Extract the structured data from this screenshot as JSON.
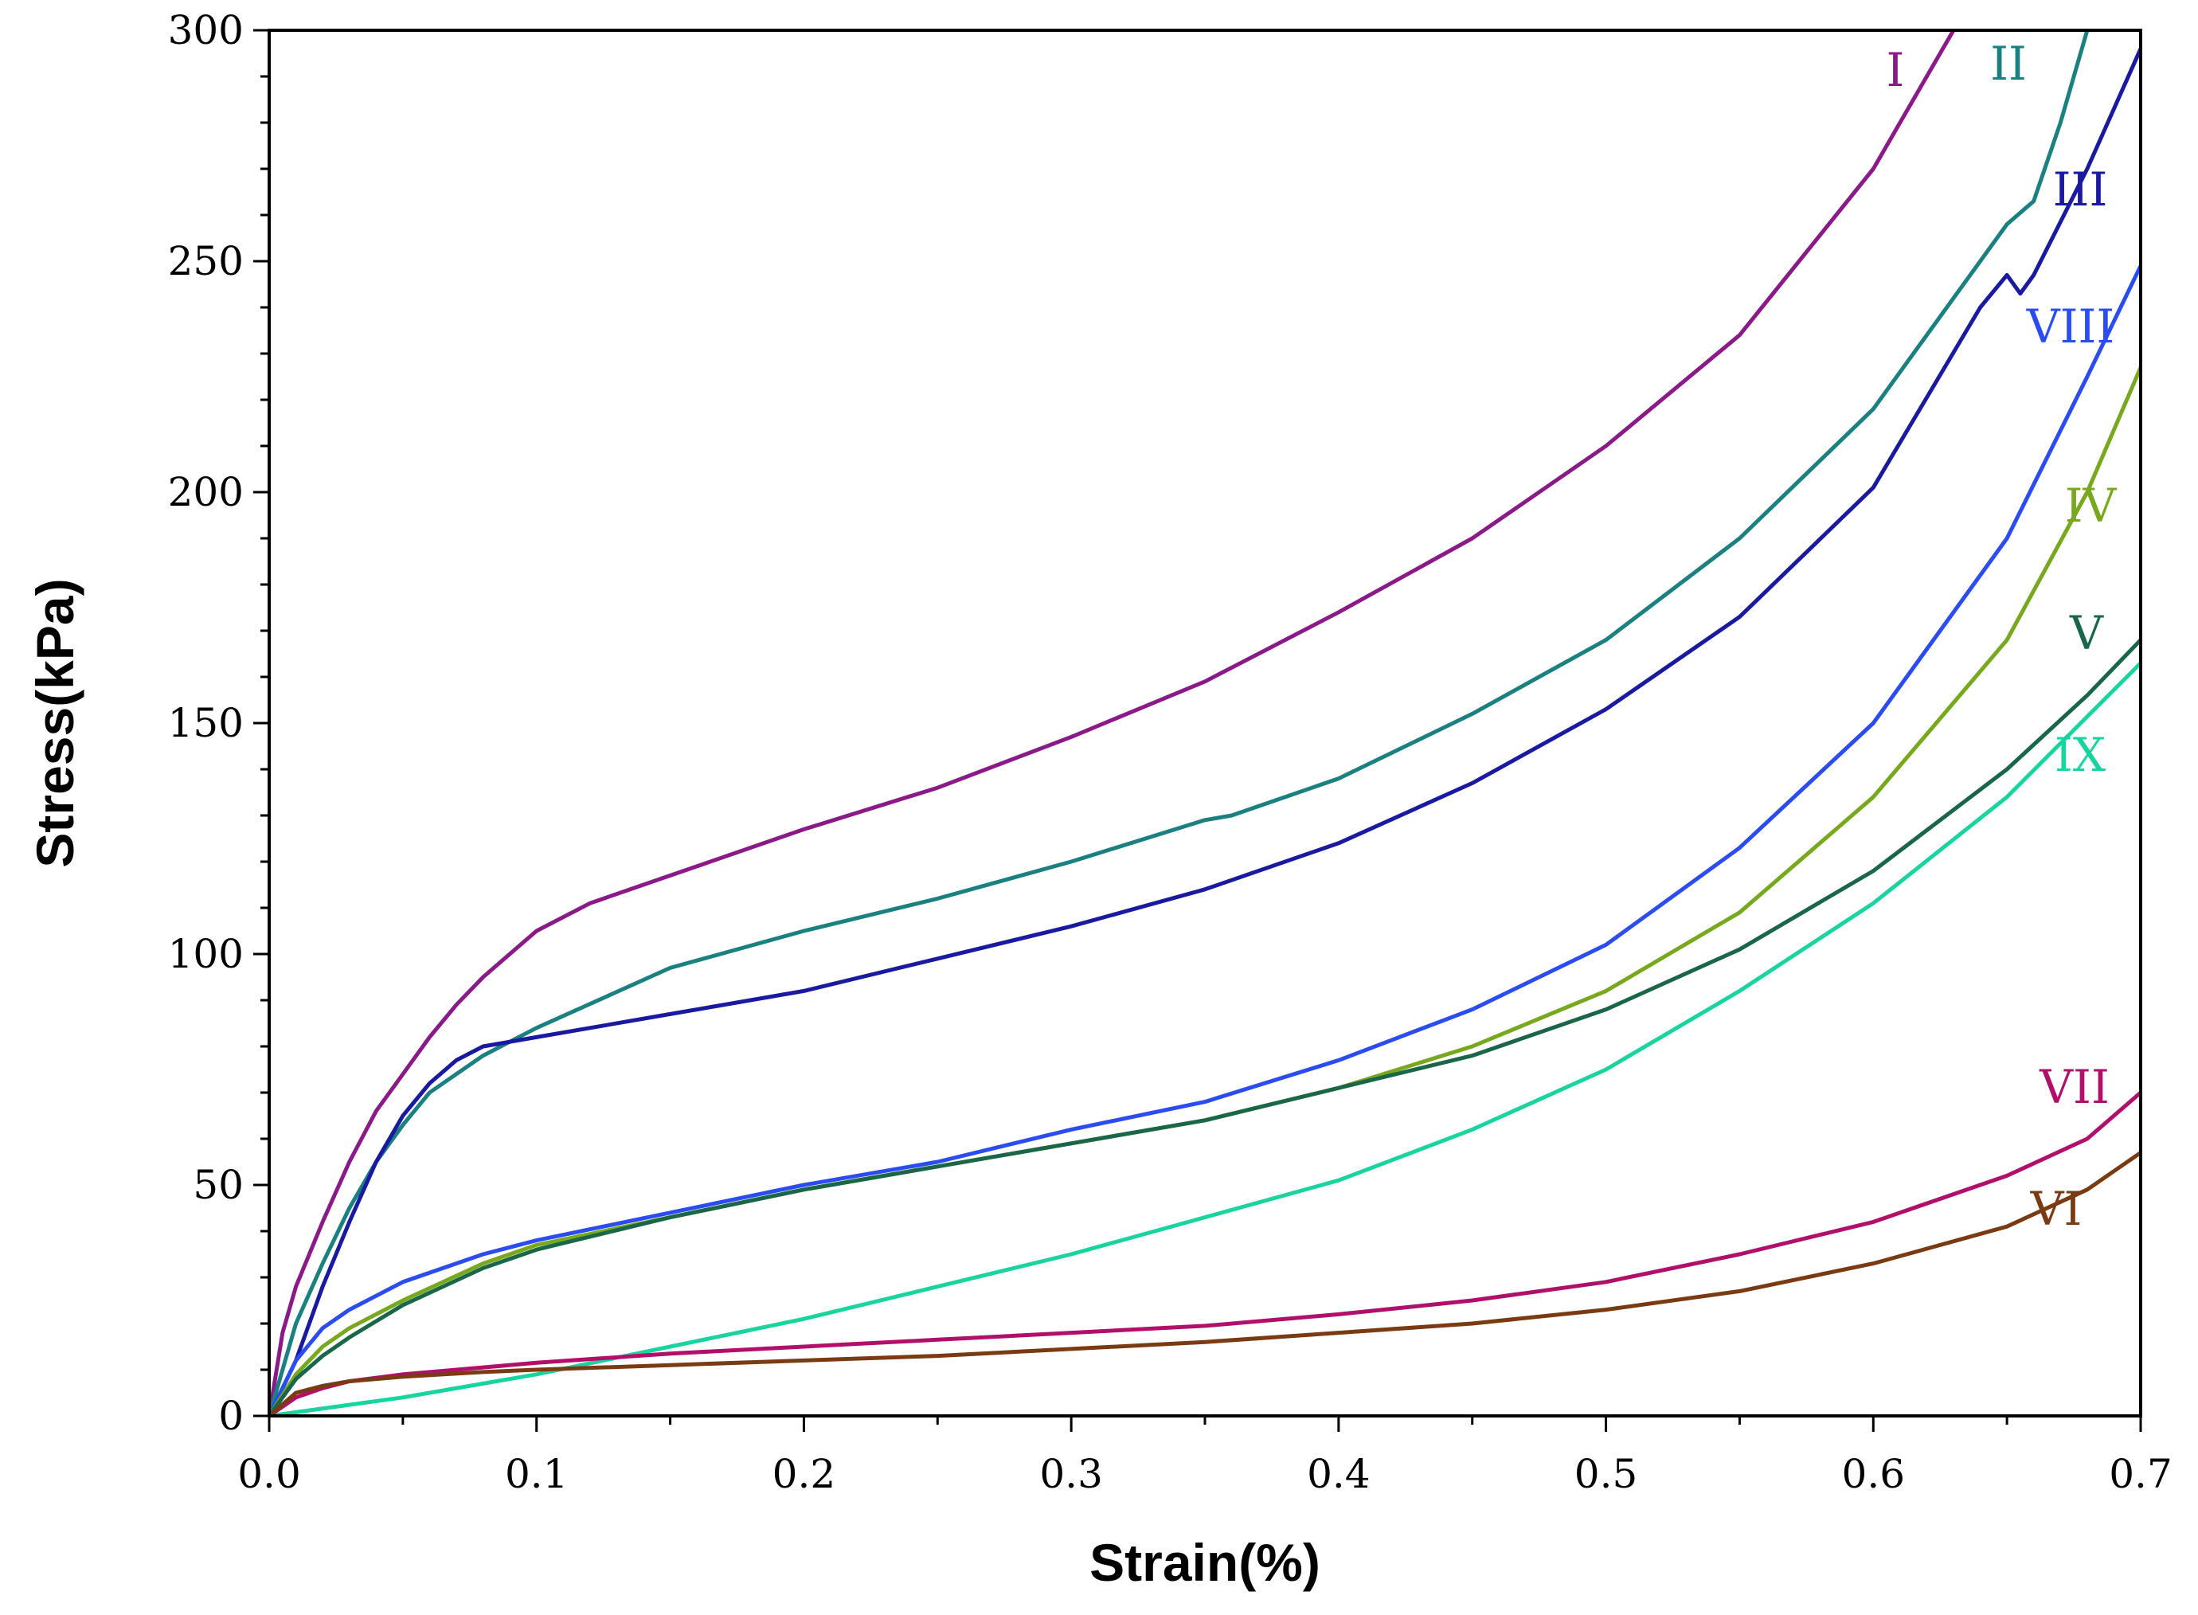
{
  "chart_data": {
    "type": "line",
    "title": "",
    "xlabel": "Strain(%)",
    "ylabel": "Stress(kPa)",
    "xlim": [
      0,
      0.7
    ],
    "ylim": [
      0,
      300
    ],
    "xticks": [
      0,
      0.1,
      0.2,
      0.3,
      0.4,
      0.5,
      0.6,
      0.7
    ],
    "xtick_labels": [
      "0.0",
      "0.1",
      "0.2",
      "0.3",
      "0.4",
      "0.5",
      "0.6",
      "0.7"
    ],
    "yticks": [
      0,
      50,
      100,
      150,
      200,
      250,
      300
    ],
    "ytick_labels": [
      "0",
      "50",
      "100",
      "150",
      "200",
      "250",
      "300"
    ],
    "grid": false,
    "series": [
      {
        "name": "I",
        "color": "#8B1A89",
        "x": [
          0,
          0.005,
          0.01,
          0.02,
          0.03,
          0.04,
          0.05,
          0.06,
          0.07,
          0.08,
          0.09,
          0.1,
          0.12,
          0.15,
          0.2,
          0.25,
          0.3,
          0.35,
          0.4,
          0.45,
          0.5,
          0.55,
          0.6,
          0.62,
          0.63
        ],
        "y": [
          0,
          18,
          28,
          42,
          55,
          66,
          74,
          82,
          89,
          95,
          100,
          105,
          111,
          117,
          127,
          136,
          147,
          159,
          174,
          190,
          210,
          234,
          270,
          290,
          300
        ]
      },
      {
        "name": "II",
        "color": "#1A8080",
        "x": [
          0,
          0.01,
          0.02,
          0.03,
          0.04,
          0.05,
          0.06,
          0.08,
          0.1,
          0.15,
          0.2,
          0.25,
          0.3,
          0.35,
          0.36,
          0.4,
          0.45,
          0.5,
          0.55,
          0.6,
          0.65,
          0.66,
          0.67,
          0.68
        ],
        "y": [
          0,
          20,
          33,
          45,
          55,
          63,
          70,
          78,
          84,
          97,
          105,
          112,
          120,
          129,
          130,
          138,
          152,
          168,
          190,
          218,
          258,
          263,
          280,
          300
        ]
      },
      {
        "name": "III",
        "color": "#1A1AA0",
        "x": [
          0,
          0.01,
          0.02,
          0.03,
          0.04,
          0.05,
          0.06,
          0.07,
          0.08,
          0.1,
          0.15,
          0.2,
          0.25,
          0.3,
          0.35,
          0.4,
          0.45,
          0.5,
          0.55,
          0.6,
          0.64,
          0.65,
          0.655,
          0.66,
          0.68,
          0.7
        ],
        "y": [
          0,
          12,
          28,
          42,
          55,
          65,
          72,
          77,
          80,
          82,
          87,
          92,
          99,
          106,
          114,
          124,
          137,
          153,
          173,
          201,
          240,
          247,
          243,
          247,
          270,
          296
        ]
      },
      {
        "name": "VIII",
        "color": "#2A4CF0",
        "x": [
          0,
          0.01,
          0.02,
          0.03,
          0.05,
          0.08,
          0.1,
          0.15,
          0.2,
          0.25,
          0.3,
          0.35,
          0.4,
          0.45,
          0.5,
          0.55,
          0.6,
          0.65,
          0.68,
          0.7
        ],
        "y": [
          0,
          12,
          19,
          23,
          29,
          35,
          38,
          44,
          50,
          55,
          62,
          68,
          77,
          88,
          102,
          123,
          150,
          190,
          225,
          249
        ]
      },
      {
        "name": "IV",
        "color": "#78A81E",
        "x": [
          0,
          0.01,
          0.02,
          0.03,
          0.05,
          0.08,
          0.1,
          0.15,
          0.2,
          0.25,
          0.3,
          0.35,
          0.4,
          0.45,
          0.5,
          0.55,
          0.6,
          0.65,
          0.68,
          0.7
        ],
        "y": [
          0,
          9,
          15,
          19,
          25,
          33,
          37,
          43,
          49,
          54,
          59,
          64,
          71,
          80,
          92,
          109,
          134,
          168,
          200,
          227
        ]
      },
      {
        "name": "V",
        "color": "#1A6648",
        "x": [
          0,
          0.01,
          0.02,
          0.03,
          0.05,
          0.08,
          0.1,
          0.15,
          0.2,
          0.25,
          0.3,
          0.35,
          0.4,
          0.45,
          0.5,
          0.55,
          0.6,
          0.65,
          0.68,
          0.7
        ],
        "y": [
          0,
          8,
          13,
          17,
          24,
          32,
          36,
          43,
          49,
          54,
          59,
          64,
          71,
          78,
          88,
          101,
          118,
          140,
          156,
          168
        ]
      },
      {
        "name": "IX",
        "color": "#1AD4A0",
        "x": [
          0,
          0.05,
          0.1,
          0.15,
          0.2,
          0.25,
          0.3,
          0.35,
          0.4,
          0.45,
          0.5,
          0.55,
          0.6,
          0.65,
          0.7
        ],
        "y": [
          0,
          4,
          9,
          15,
          21,
          28,
          35,
          43,
          51,
          62,
          75,
          92,
          111,
          134,
          163
        ]
      },
      {
        "name": "VII",
        "color": "#B0106A",
        "x": [
          0,
          0.01,
          0.02,
          0.03,
          0.05,
          0.08,
          0.1,
          0.15,
          0.2,
          0.25,
          0.3,
          0.35,
          0.4,
          0.45,
          0.5,
          0.55,
          0.6,
          0.65,
          0.68,
          0.7
        ],
        "y": [
          0,
          4,
          6,
          7.5,
          9,
          10.5,
          11.5,
          13.5,
          15,
          16.5,
          18,
          19.5,
          22,
          25,
          29,
          35,
          42,
          52,
          60,
          70
        ]
      },
      {
        "name": "VI",
        "color": "#7A3A12",
        "x": [
          0,
          0.01,
          0.02,
          0.03,
          0.05,
          0.08,
          0.1,
          0.15,
          0.2,
          0.25,
          0.3,
          0.35,
          0.4,
          0.45,
          0.5,
          0.55,
          0.6,
          0.65,
          0.68,
          0.7
        ],
        "y": [
          0,
          5,
          6.5,
          7.5,
          8.5,
          9.5,
          10,
          11,
          12,
          13,
          14.5,
          16,
          18,
          20,
          23,
          27,
          33,
          41,
          49,
          57
        ]
      }
    ],
    "annotations": [
      {
        "text": "I",
        "color": "#8B1A89"
      },
      {
        "text": "II",
        "color": "#1A8080"
      },
      {
        "text": "III",
        "color": "#1A1AA0"
      },
      {
        "text": "VIII",
        "color": "#2A4CF0"
      },
      {
        "text": "IV",
        "color": "#78A81E"
      },
      {
        "text": "V",
        "color": "#1A6648"
      },
      {
        "text": "IX",
        "color": "#1AD4A0"
      },
      {
        "text": "VII",
        "color": "#B0106A"
      },
      {
        "text": "VI",
        "color": "#7A3A12"
      }
    ]
  }
}
